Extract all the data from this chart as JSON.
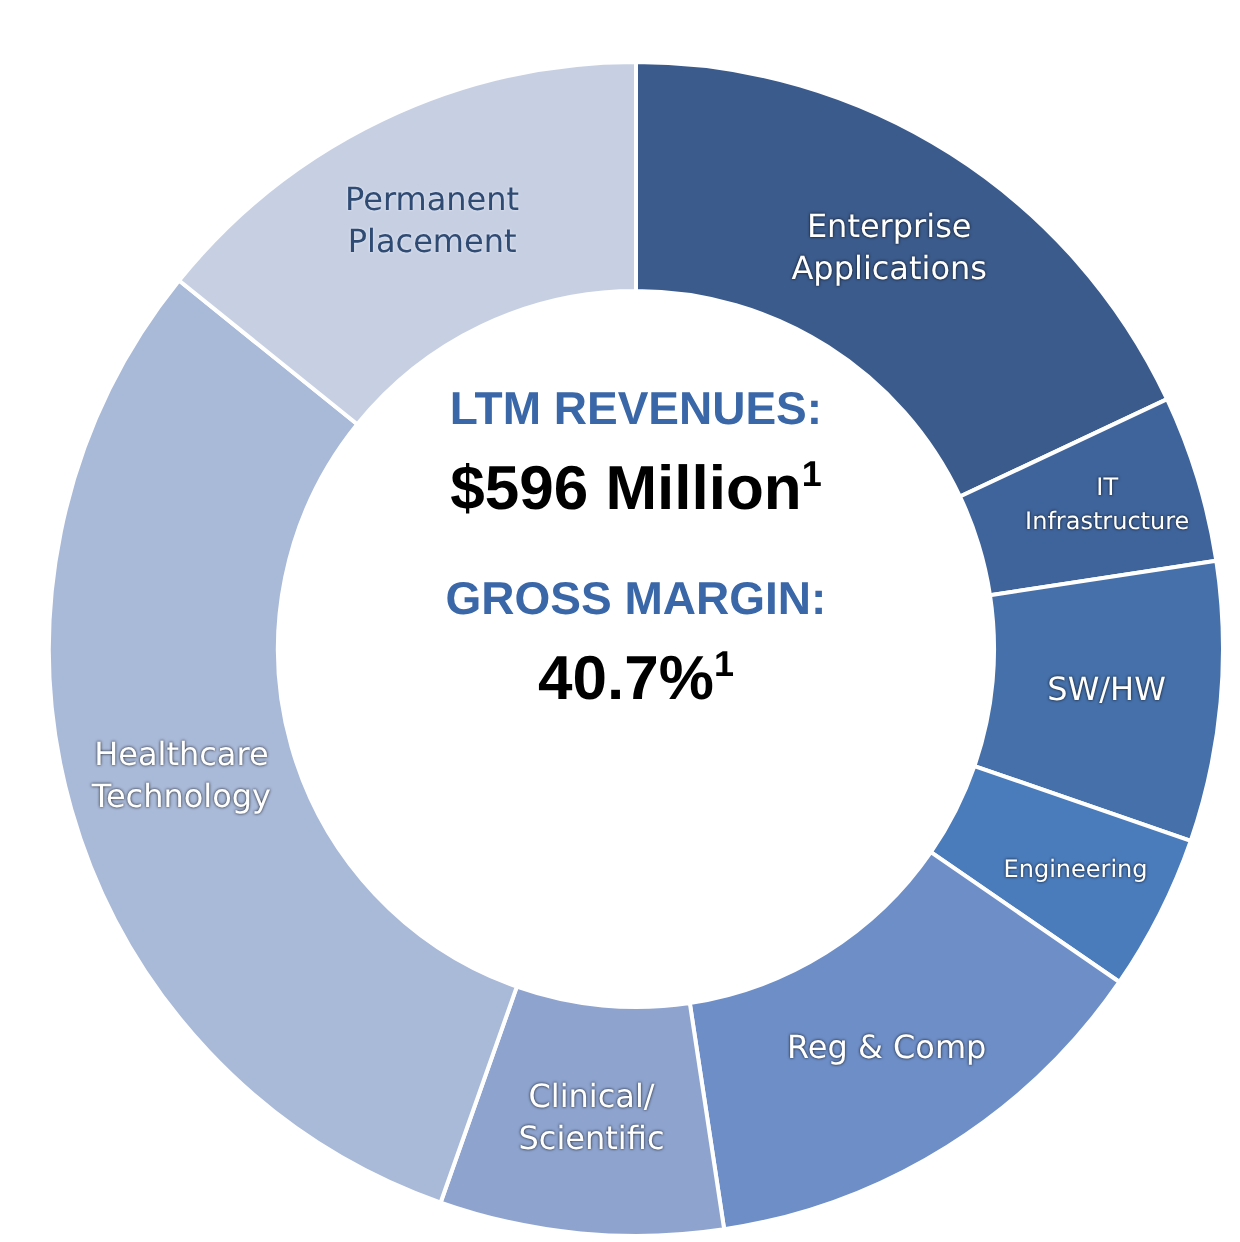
{
  "chart_data": {
    "type": "donut",
    "categories": [
      "Enterprise Applications",
      "IT Infrastructure",
      "SW/HW",
      "Engineering",
      "Reg & Comp",
      "Clinical/Scientific",
      "Healthcare Technology",
      "Permanent Placement"
    ],
    "values": [
      18,
      4.6,
      7.7,
      4.3,
      13,
      7.8,
      30.4,
      14.2
    ],
    "colors": [
      "#3b5b8c",
      "#3f649b",
      "#4570a9",
      "#4a7bbb",
      "#6d8ec7",
      "#8ea4cf",
      "#a9b9d8",
      "#c7d0e3"
    ],
    "legend": false,
    "annotations": [
      "LTM REVENUES:",
      "$596 Million$^{1}$",
      "GROSS MARGIN:",
      "40.7%$^{1}$"
    ]
  }
}
